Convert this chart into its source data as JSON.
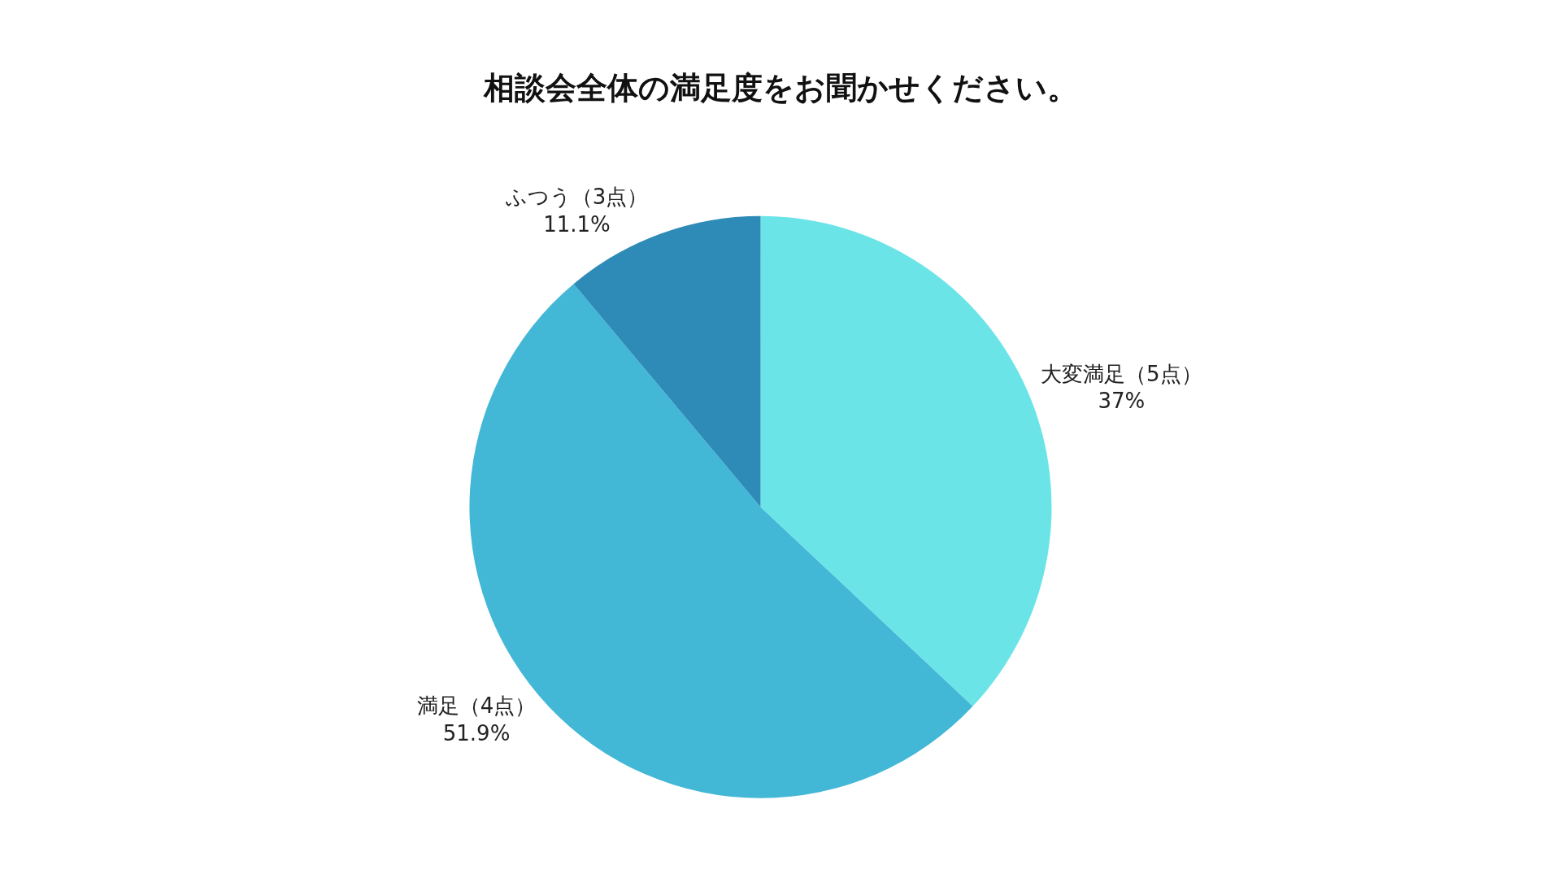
{
  "chart_data": {
    "type": "pie",
    "title": "相談会全体の満足度をお聞かせください。",
    "categories": [
      "大変満足（5点）",
      "満足（4点）",
      "ふつう（3点）"
    ],
    "values": [
      37,
      51.9,
      11.1
    ],
    "value_labels": [
      "37%",
      "51.9%",
      "11.1%"
    ],
    "colors": [
      "#6be4e8",
      "#42b7d6",
      "#2e8bb8"
    ],
    "legend": false
  }
}
